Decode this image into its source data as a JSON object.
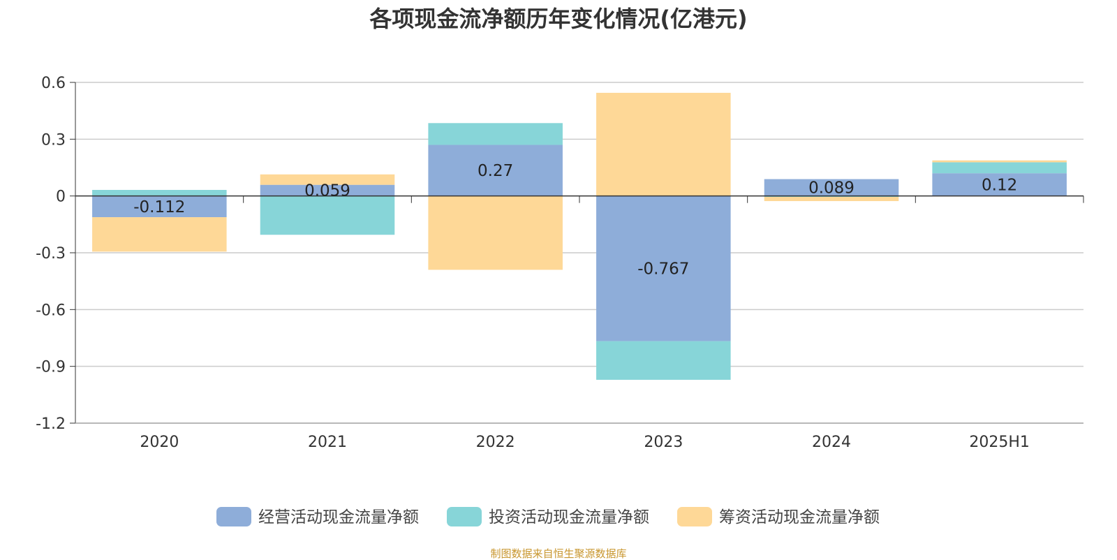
{
  "chart_data": {
    "type": "bar",
    "stacked": true,
    "title": "各项现金流净额历年变化情况(亿港元)",
    "categories": [
      "2020",
      "2021",
      "2022",
      "2023",
      "2024",
      "2025H1"
    ],
    "series": [
      {
        "name": "经营活动现金流量净额",
        "color": "#8eadd9",
        "values": [
          -0.112,
          0.059,
          0.27,
          -0.767,
          0.089,
          0.12
        ]
      },
      {
        "name": "投资活动现金流量净额",
        "color": "#87d5d8",
        "values": [
          0.032,
          -0.205,
          0.115,
          -0.204,
          -0.005,
          0.058
        ]
      },
      {
        "name": "筹资活动现金流量净额",
        "color": "#fed897",
        "values": [
          -0.182,
          0.055,
          -0.39,
          0.545,
          -0.022,
          0.01
        ]
      }
    ],
    "data_labels": [
      "-0.112",
      "0.059",
      "0.27",
      "-0.767",
      "0.089",
      "0.12"
    ],
    "y_ticks": [
      "0.6",
      "0.3",
      "0",
      "-0.3",
      "-0.6",
      "-0.9",
      "-1.2"
    ],
    "ylim": [
      -1.2,
      0.6
    ],
    "grid": true,
    "legend_position": "bottom"
  },
  "source_text": "制图数据来自恒生聚源数据库"
}
